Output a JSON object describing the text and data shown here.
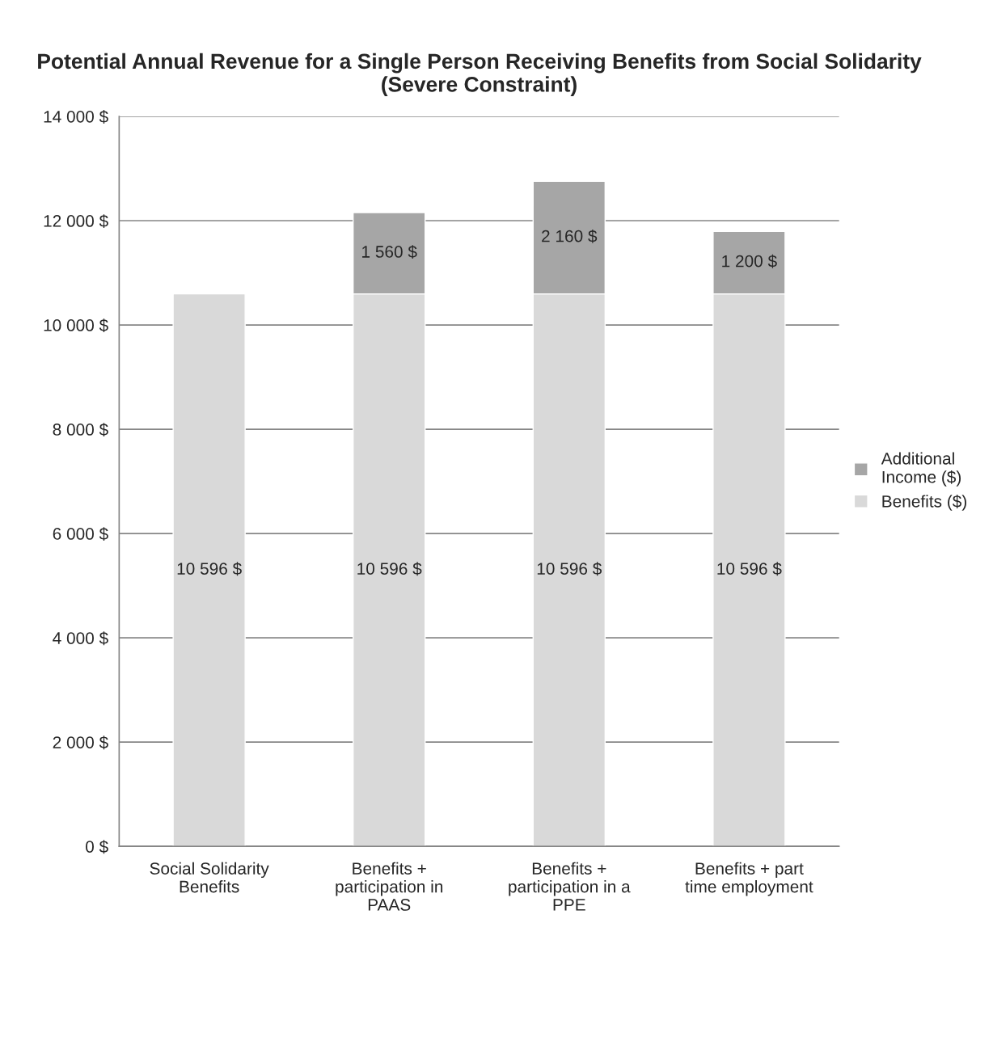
{
  "chart_data": {
    "type": "bar",
    "title": "Potential Annual Revenue for a Single Person Receiving Benefits from Social Solidarity (Severe Constraint)",
    "categories": [
      "Social Solidarity Benefits",
      "Benefits + participation in PAAS",
      "Benefits + participation in a PPE",
      "Benefits + part time employment"
    ],
    "stacked": true,
    "series": [
      {
        "name": "Benefits ($)",
        "color": "#d9d9d9",
        "values": [
          10596,
          10596,
          10596,
          10596
        ],
        "value_labels": [
          "10 596 $",
          "10 596 $",
          "10 596 $",
          "10 596 $"
        ]
      },
      {
        "name": "Additional Income ($)",
        "color": "#a6a6a6",
        "values": [
          null,
          1560,
          2160,
          1200
        ],
        "value_labels": [
          null,
          "1 560 $",
          "2 160 $",
          "1 200 $"
        ]
      }
    ],
    "ylim": [
      0,
      14000
    ],
    "yticks": [
      {
        "value": 0,
        "label": "0 $"
      },
      {
        "value": 2000,
        "label": "2 000 $"
      },
      {
        "value": 4000,
        "label": "4 000 $"
      },
      {
        "value": 6000,
        "label": "6 000 $"
      },
      {
        "value": 8000,
        "label": "8 000 $"
      },
      {
        "value": 10000,
        "label": "10 000 $"
      },
      {
        "value": 12000,
        "label": "12 000 $"
      },
      {
        "value": 14000,
        "label": "14 000 $"
      }
    ],
    "grid": "y",
    "legend": "right"
  }
}
